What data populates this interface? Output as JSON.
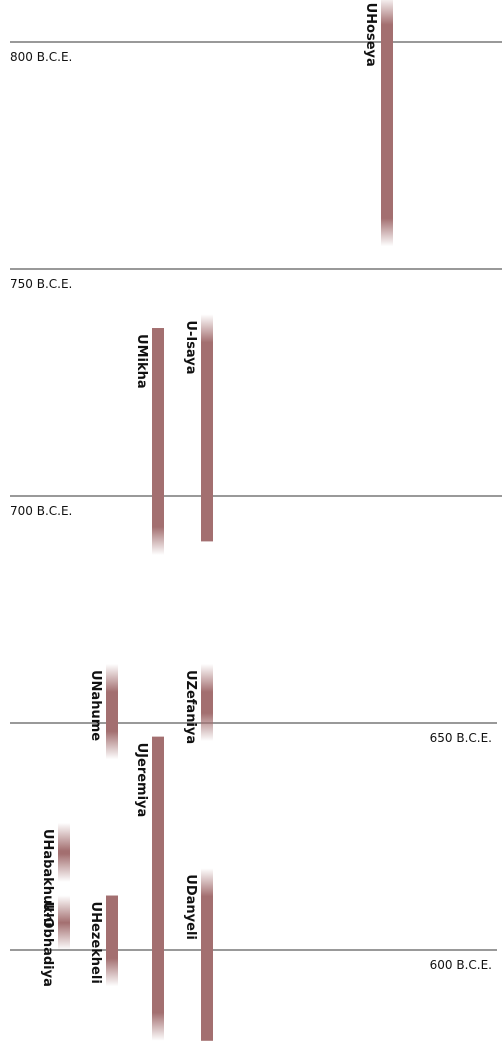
{
  "chart_data": {
    "type": "timeline",
    "unit": "B.C.E.",
    "axis_range": [
      816,
      593
    ],
    "gridlines": [
      {
        "year": 800,
        "label": "800 B.C.E.",
        "label_side": "left"
      },
      {
        "year": 750,
        "label": "750 B.C.E.",
        "label_side": "left"
      },
      {
        "year": 700,
        "label": "700 B.C.E.",
        "label_side": "left"
      },
      {
        "year": 650,
        "label": "650 B.C.E.",
        "label_side": "right"
      },
      {
        "year": 600,
        "label": "600 B.C.E.",
        "label_side": "right"
      }
    ],
    "prophets": [
      {
        "name": "UHoseya",
        "start": 810,
        "end": 755,
        "fade_start": true,
        "fade_end": true
      },
      {
        "name": "U-Isaya",
        "start": 740,
        "end": 690,
        "fade_start": true,
        "fade_end": false
      },
      {
        "name": "UMikha",
        "start": 737,
        "end": 687,
        "fade_start": false,
        "fade_end": true
      },
      {
        "name": "UNahume",
        "start": 663,
        "end": 642,
        "fade_start": true,
        "fade_end": true
      },
      {
        "name": "UZefaniya",
        "start": 663,
        "end": 646,
        "fade_start": true,
        "fade_end": true
      },
      {
        "name": "UJeremiya",
        "start": 647,
        "end": 580,
        "fade_start": false,
        "fade_end": true
      },
      {
        "name": "UHabakhukhi",
        "start": 628,
        "end": 615,
        "fade_start": true,
        "fade_end": true
      },
      {
        "name": "U-Obhadiya",
        "start": 612,
        "end": 600,
        "fade_start": true,
        "fade_end": true
      },
      {
        "name": "UHezekheli",
        "start": 612,
        "end": 592,
        "fade_start": false,
        "fade_end": true
      },
      {
        "name": "UDanyeli",
        "start": 618,
        "end": 580,
        "fade_start": true,
        "fade_end": false
      }
    ],
    "colors": {
      "bar": "#a36f70",
      "gridline": "#333333",
      "text": "#111111"
    }
  }
}
